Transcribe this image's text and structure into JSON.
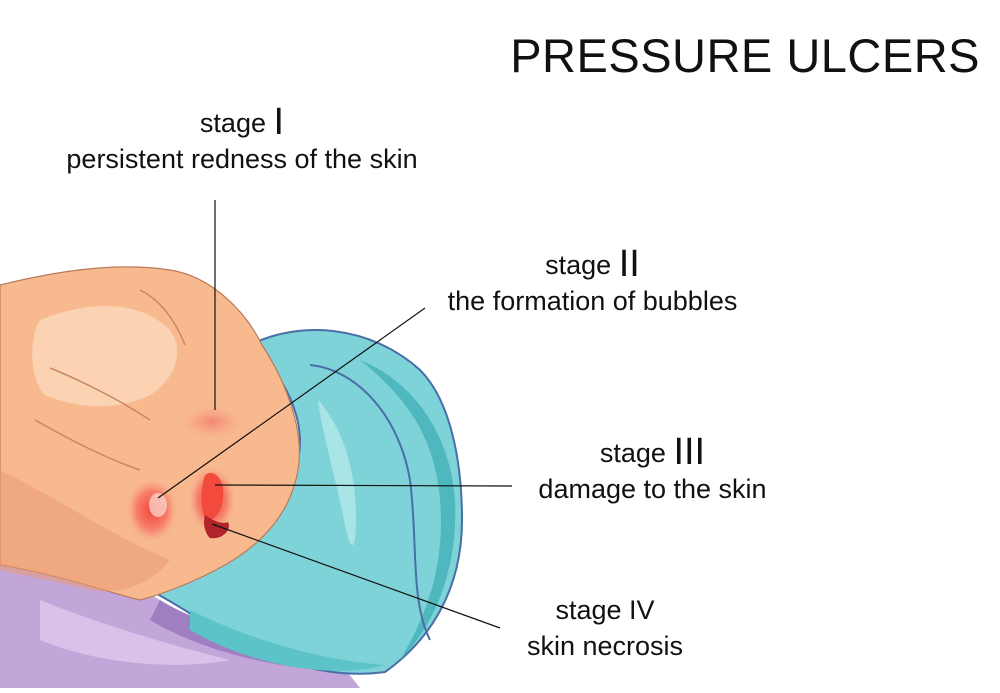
{
  "title": "PRESSURE ULCERS",
  "stages": [
    {
      "word": "stage",
      "numeral": "I",
      "description": "persistent redness of the skin"
    },
    {
      "word": "stage",
      "numeral": "II",
      "description": "the formation of bubbles"
    },
    {
      "word": "stage",
      "numeral": "III",
      "description": "damage to the skin"
    },
    {
      "word": "stage",
      "numeral": "IV",
      "description": "skin necrosis"
    }
  ],
  "colors": {
    "skin": "#f8b98f",
    "skin_highlight": "#fbd3b2",
    "skin_shadow": "#e89a74",
    "pillow": "#7dd3d8",
    "pillow_dark": "#4fb8bf",
    "pillow_outline": "#4a6ea8",
    "bedsheet": "#c3a6d9",
    "bedsheet_dark": "#9f7fc2",
    "ulcer_red": "#f24a3c",
    "ulcer_dark": "#b0242a"
  }
}
